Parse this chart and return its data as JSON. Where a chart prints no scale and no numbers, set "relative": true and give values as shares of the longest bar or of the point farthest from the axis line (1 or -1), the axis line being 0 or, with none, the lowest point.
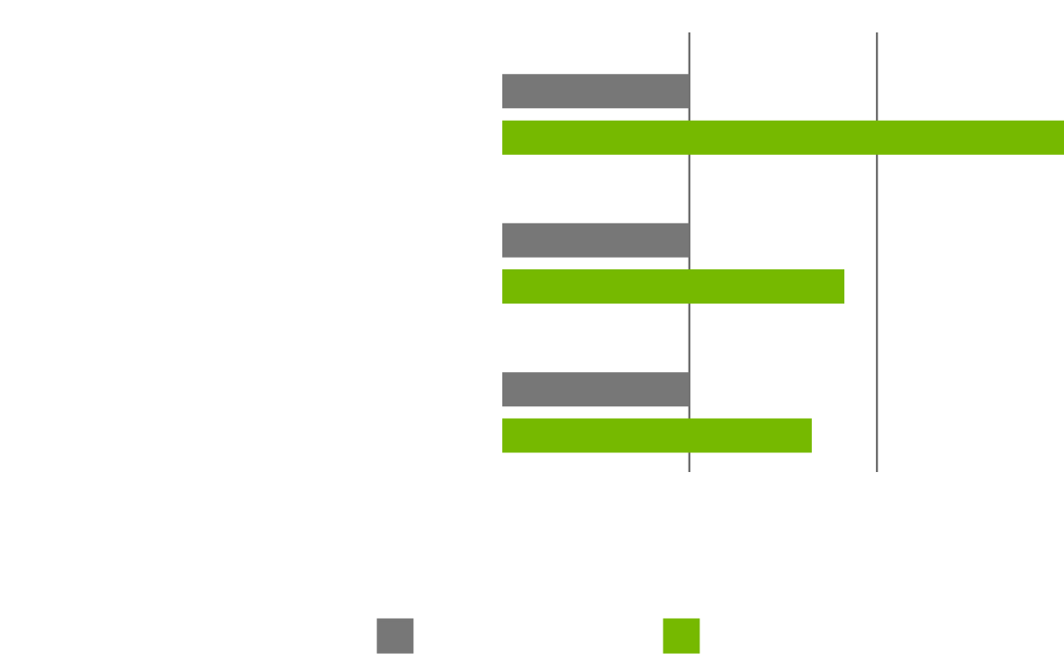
{
  "chart_data": {
    "type": "bar",
    "orientation": "horizontal",
    "relative": true,
    "categories": [
      null,
      null,
      null
    ],
    "series": [
      {
        "color": "#777777",
        "values": [
          0.333,
          0.333,
          0.333
        ]
      },
      {
        "color": "#76b900",
        "values": [
          1,
          0.609,
          0.551
        ]
      }
    ],
    "ref_lines": [
      {
        "axis": "x",
        "value": 0.333,
        "color": "#666666"
      },
      {
        "axis": "x",
        "value": 0.667,
        "color": "#666666"
      }
    ]
  }
}
